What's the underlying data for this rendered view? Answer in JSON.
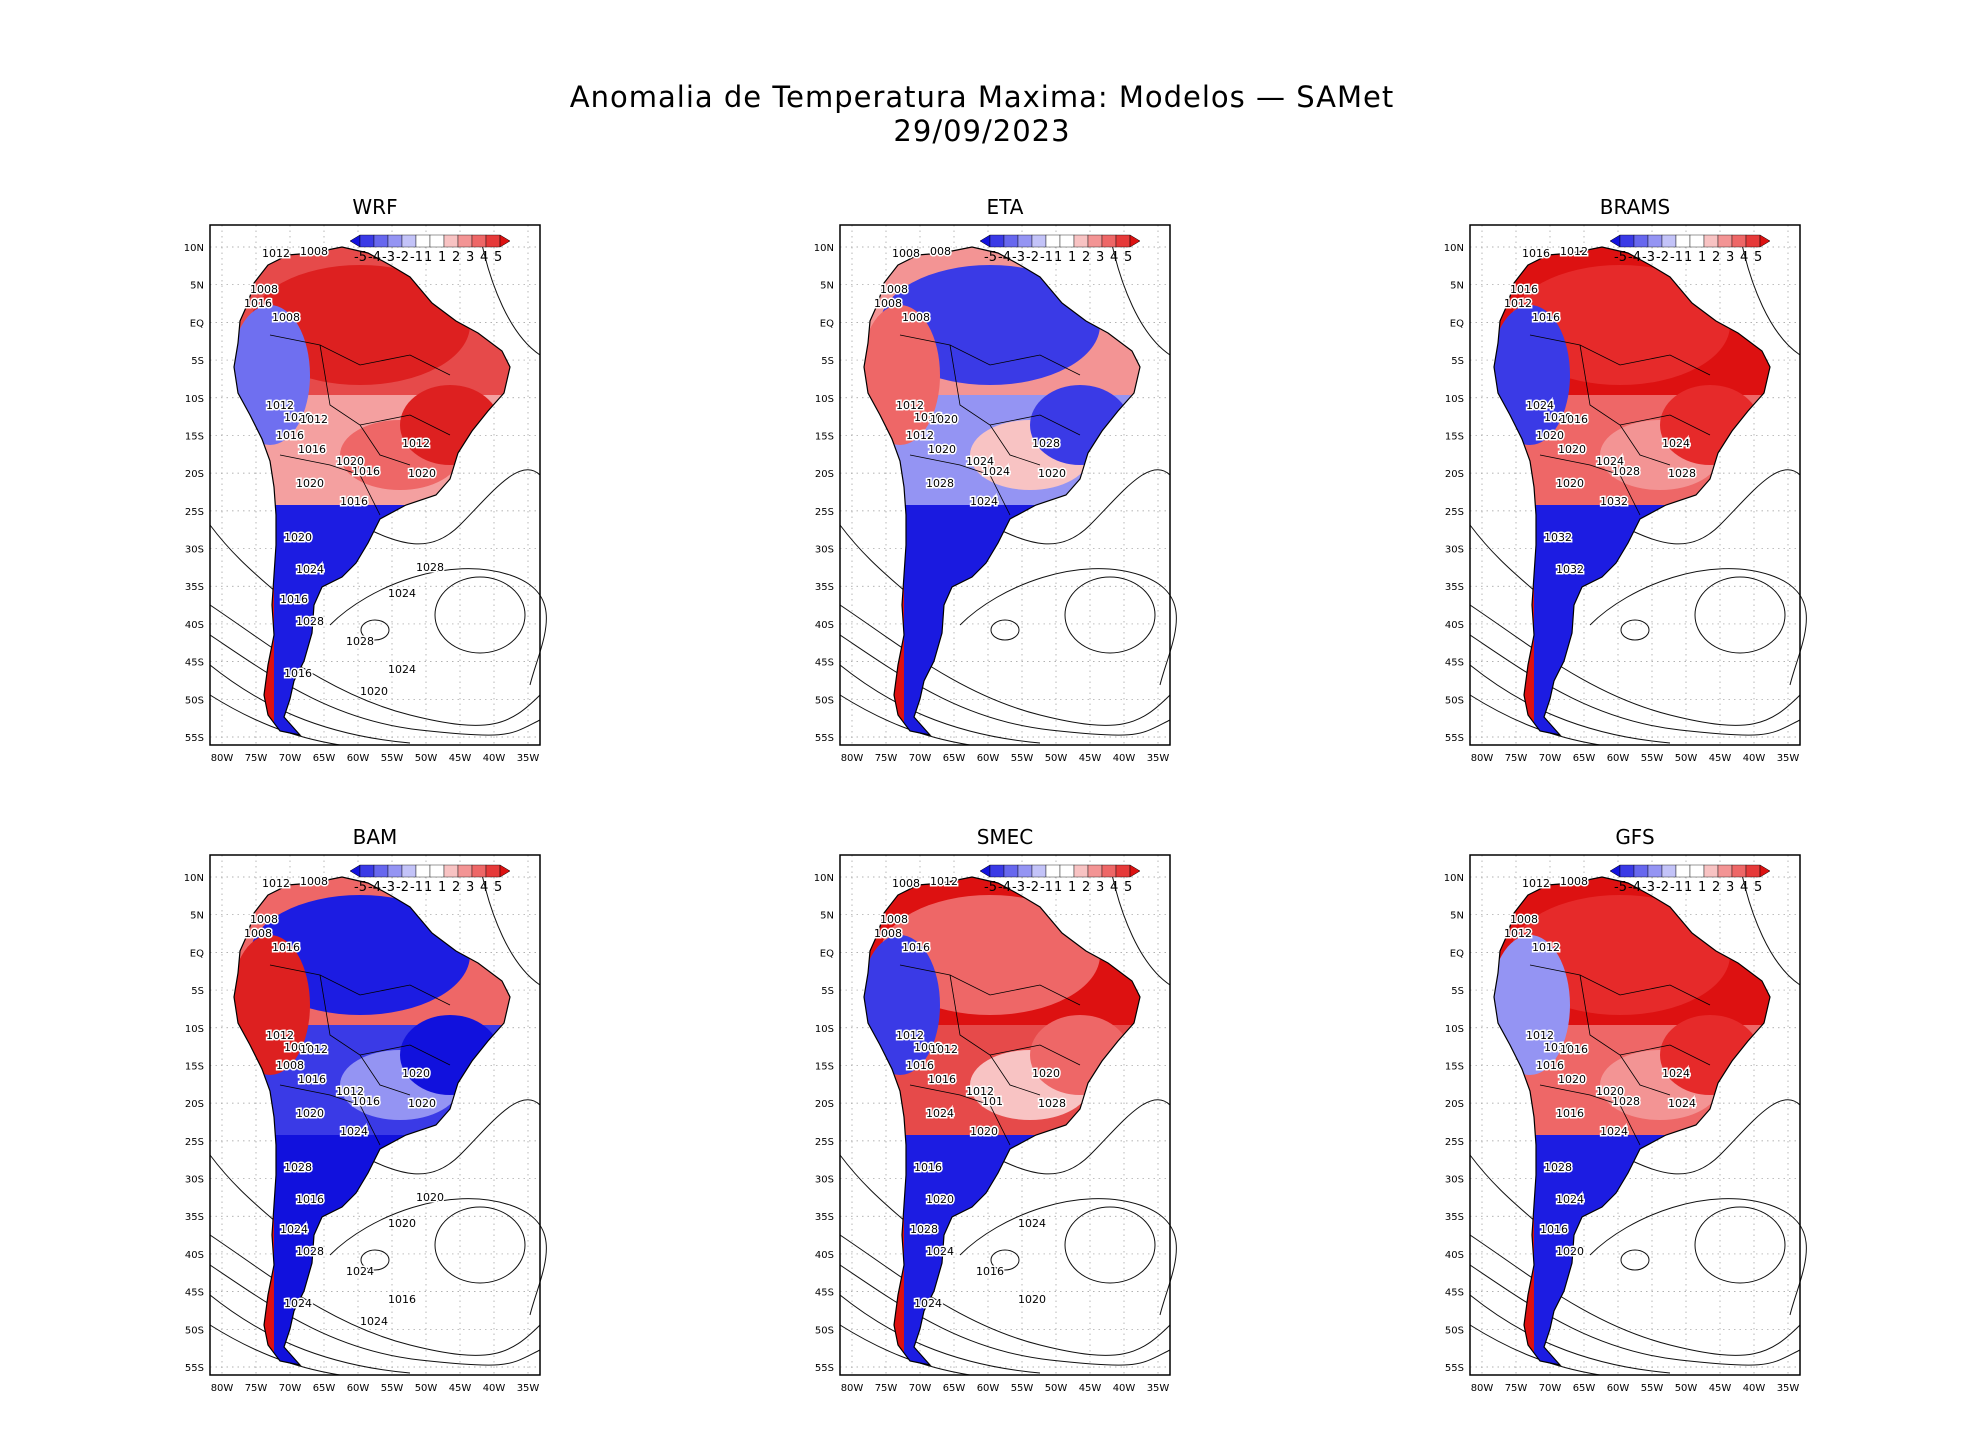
{
  "title": {
    "line1": "Anomalia de Temperatura Maxima: Modelos — SAMet",
    "line2": "29/09/2023"
  },
  "axes": {
    "lat_labels": [
      "10N",
      "5N",
      "EQ",
      "5S",
      "10S",
      "15S",
      "20S",
      "25S",
      "30S",
      "35S",
      "40S",
      "45S",
      "50S",
      "55S"
    ],
    "lon_labels": [
      "80W",
      "75W",
      "70W",
      "65W",
      "60W",
      "55W",
      "50W",
      "45W",
      "40W",
      "35W"
    ]
  },
  "colorbar": {
    "labels": [
      "-5",
      "-4",
      "-3",
      "-2",
      "-1",
      "1",
      "1",
      "2",
      "3",
      "4",
      "5"
    ],
    "colors": [
      "#1111dd",
      "#3a3ae6",
      "#6767ee",
      "#9494f3",
      "#c3c3f8",
      "#ffffff",
      "#ffffff",
      "#f8c3c3",
      "#f39494",
      "#ee6767",
      "#e63a3a",
      "#dd1111"
    ]
  },
  "panels": [
    {
      "name": "WRF",
      "contours": [
        "1012",
        "1008",
        "1008",
        "1016",
        "1008",
        "1012",
        "1020",
        "1016",
        "1012",
        "1016",
        "1020",
        "1012",
        "1016",
        "1020",
        "1016",
        "1020",
        "1020",
        "1024",
        "1016",
        "1028",
        "1024",
        "1028",
        "1016",
        "1024",
        "1020",
        "1028"
      ]
    },
    {
      "name": "ETA",
      "contours": [
        "1008",
        "008",
        "1008",
        "1008",
        "1008",
        "1012",
        "1016",
        "1012",
        "1020",
        "1020",
        "1024",
        "1028",
        "1024",
        "1028",
        "1024",
        "1020"
      ]
    },
    {
      "name": "BRAMS",
      "contours": [
        "1016",
        "1012",
        "1016",
        "1012",
        "1016",
        "1024",
        "1020",
        "1020",
        "1016",
        "1020",
        "1024",
        "1024",
        "1028",
        "1020",
        "1032",
        "1028",
        "1032",
        "1032"
      ]
    },
    {
      "name": "BAM",
      "contours": [
        "1012",
        "1008",
        "1008",
        "1008",
        "1016",
        "1012",
        "1008",
        "1008",
        "1012",
        "1016",
        "1012",
        "1020",
        "1016",
        "1020",
        "1024",
        "1020",
        "1028",
        "1016",
        "1024",
        "1028",
        "1020",
        "1024",
        "1024",
        "1016",
        "1024",
        "1020"
      ]
    },
    {
      "name": "SMEC",
      "contours": [
        "1008",
        "1012",
        "1008",
        "1008",
        "1016",
        "1012",
        "1008",
        "1016",
        "1012",
        "1016",
        "1012",
        "1020",
        "101",
        "1024",
        "1020",
        "1028",
        "1016",
        "1020",
        "1028",
        "1024",
        "1024",
        "1016",
        "1024",
        "1020"
      ]
    },
    {
      "name": "GFS",
      "contours": [
        "1012",
        "1008",
        "1008",
        "1012",
        "1012",
        "1012",
        "1016",
        "1016",
        "1016",
        "1020",
        "1020",
        "1024",
        "1028",
        "1016",
        "1024",
        "1024",
        "1028",
        "1024",
        "1016",
        "1020"
      ]
    }
  ]
}
